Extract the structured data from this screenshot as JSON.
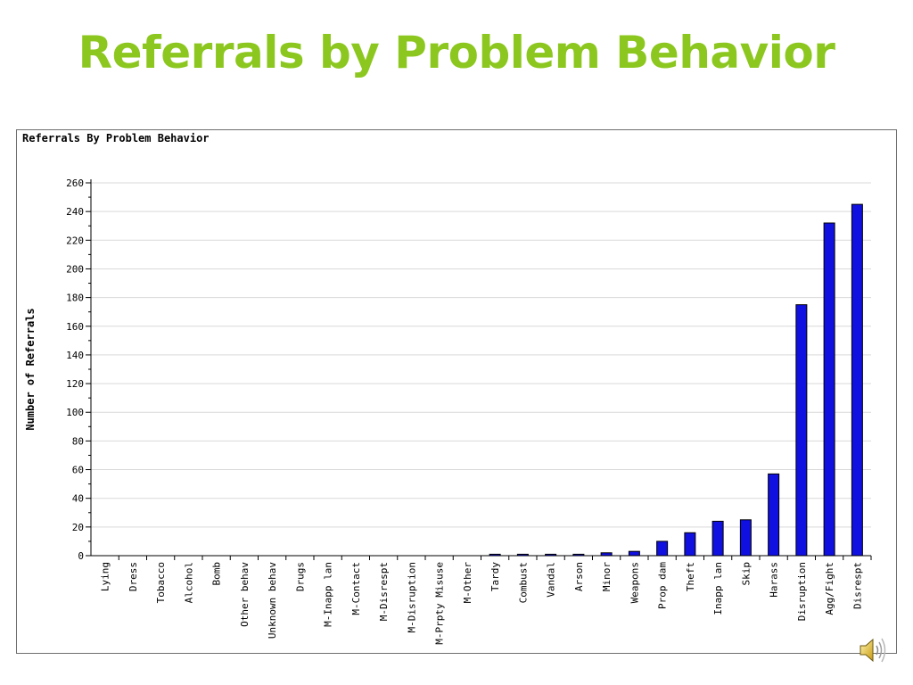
{
  "slide": {
    "title": "Referrals by Problem Behavior",
    "title_color": "#8cc71f"
  },
  "chart_data": {
    "type": "bar",
    "title": "Referrals By Problem Behavior",
    "xlabel": "",
    "ylabel": "Number of Referrals",
    "ylim": [
      0,
      260
    ],
    "ytick_step": 20,
    "grid": true,
    "bar_color": "#1010e0",
    "categories": [
      "Lying",
      "Dress",
      "Tobacco",
      "Alcohol",
      "Bomb",
      "Other behav",
      "Unknown behav",
      "Drugs",
      "M-Inapp lan",
      "M-Contact",
      "M-Disrespt",
      "M-Disruption",
      "M-Prpty Misuse",
      "M-Other",
      "Tardy",
      "Combust",
      "Vandal",
      "Arson",
      "Minor",
      "Weapons",
      "Prop dam",
      "Theft",
      "Inapp lan",
      "Skip",
      "Harass",
      "Disruption",
      "Agg/Fight",
      "Disrespt"
    ],
    "values": [
      0,
      0,
      0,
      0,
      0,
      0,
      0,
      0,
      0,
      0,
      0,
      0,
      0,
      0,
      1,
      1,
      1,
      1,
      2,
      3,
      10,
      16,
      24,
      25,
      57,
      175,
      232,
      245
    ]
  },
  "icons": {
    "speaker": "speaker-icon"
  }
}
